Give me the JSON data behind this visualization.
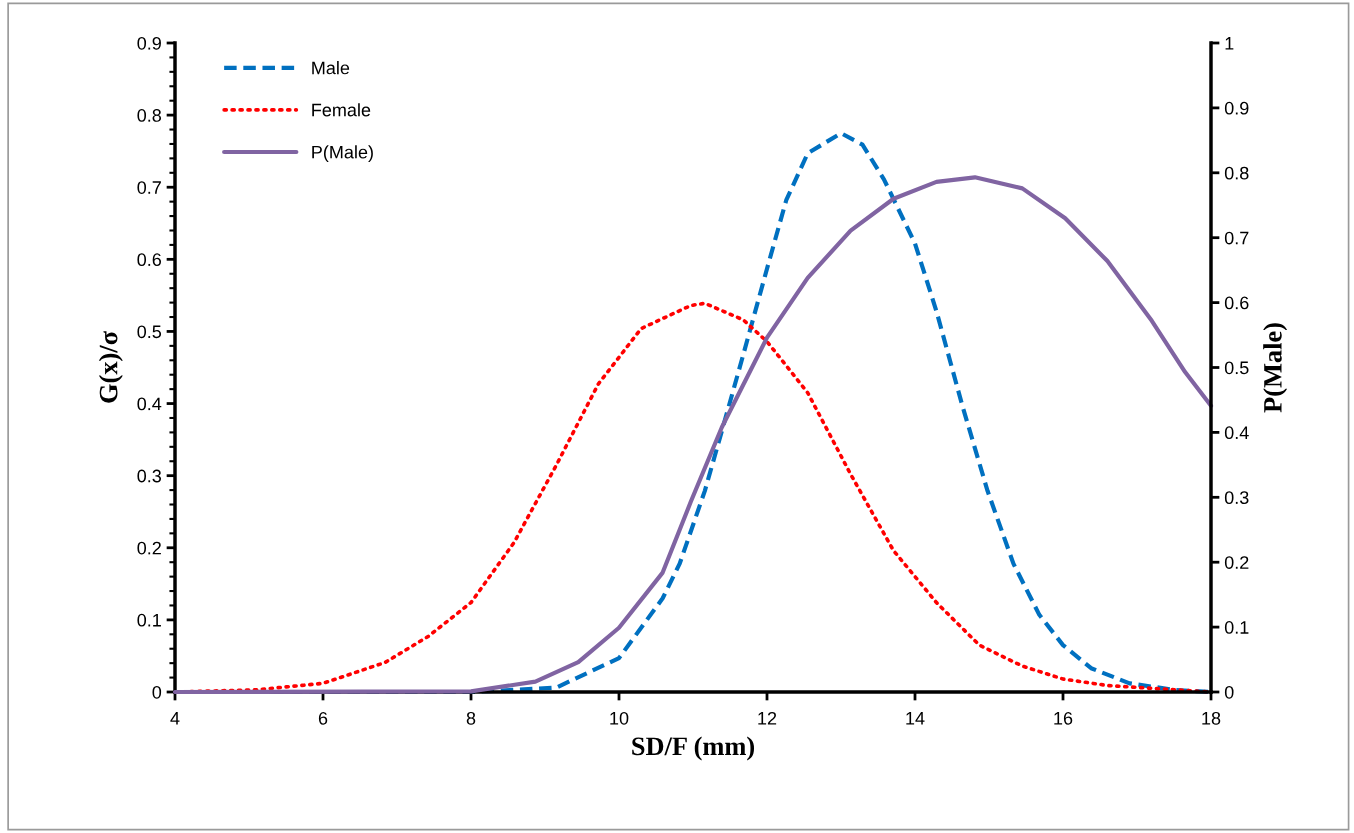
{
  "chart_data": {
    "type": "line",
    "xlabel": "SD/F (mm)",
    "ylabel": "G(x)/σ",
    "y2label": "P(Male)",
    "xlim": [
      4,
      18
    ],
    "xticks": [
      4,
      6,
      8,
      10,
      12,
      14,
      16,
      18
    ],
    "ylim": [
      0,
      0.9
    ],
    "yticks": [
      0,
      0.1,
      0.2,
      0.3,
      0.4,
      0.5,
      0.6,
      0.7,
      0.8,
      0.9
    ],
    "y2lim": [
      0,
      1
    ],
    "y2ticks": [
      0,
      0.1,
      0.2,
      0.3,
      0.4,
      0.5,
      0.6,
      0.7,
      0.8,
      0.9,
      1
    ],
    "legend": "top left",
    "grid": false,
    "marker": "none",
    "series": [
      {
        "name": "Male",
        "color": "#0070c0",
        "line_style": "dashed",
        "x": [
          4,
          8,
          9.15,
          10,
          10.59,
          10.82,
          11.16,
          11.39,
          11.68,
          12,
          12.26,
          12.55,
          13,
          13.29,
          13.58,
          14,
          14.29,
          14.64,
          14.98,
          15.33,
          15.68,
          16,
          16.38,
          16.9,
          17.5,
          18
        ],
        "values": [
          0,
          0,
          0.006,
          0.047,
          0.13,
          0.178,
          0.279,
          0.362,
          0.468,
          0.587,
          0.682,
          0.747,
          0.775,
          0.759,
          0.711,
          0.622,
          0.528,
          0.397,
          0.279,
          0.178,
          0.107,
          0.065,
          0.033,
          0.012,
          0.003,
          0
        ]
      },
      {
        "name": "Female",
        "color": "#ff0000",
        "line_style": "dotted",
        "x": [
          4,
          5.09,
          6,
          6.84,
          7.42,
          8,
          8.58,
          9.15,
          9.72,
          10.3,
          10.97,
          11.16,
          11.68,
          12,
          12.55,
          13.13,
          13.71,
          14.29,
          14.87,
          15.45,
          16,
          16.6,
          18
        ],
        "values": [
          0,
          0.003,
          0.012,
          0.041,
          0.077,
          0.124,
          0.207,
          0.314,
          0.427,
          0.504,
          0.536,
          0.539,
          0.516,
          0.486,
          0.415,
          0.302,
          0.196,
          0.124,
          0.065,
          0.036,
          0.018,
          0.009,
          0
        ]
      },
      {
        "name": "P(Male)",
        "color": "#8064a2",
        "line_style": "solid",
        "axis": "y2",
        "x": [
          4,
          8,
          8.87,
          9.45,
          10,
          10.59,
          10.82,
          10.97,
          11.39,
          12,
          12.55,
          13.13,
          13.71,
          14.29,
          14.81,
          15.45,
          16.03,
          16.6,
          17.2,
          17.65,
          18
        ],
        "values": [
          0,
          0.001,
          0.016,
          0.046,
          0.099,
          0.184,
          0.25,
          0.293,
          0.408,
          0.546,
          0.638,
          0.711,
          0.76,
          0.786,
          0.793,
          0.776,
          0.73,
          0.664,
          0.572,
          0.493,
          0.441
        ]
      }
    ]
  }
}
